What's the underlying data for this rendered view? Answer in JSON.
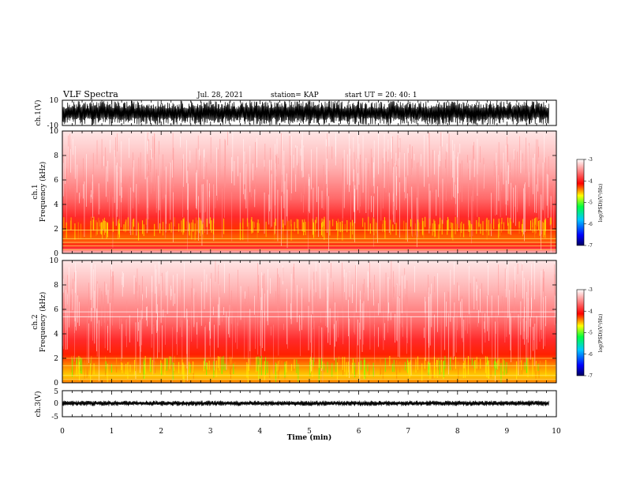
{
  "header": {
    "title": "VLF Spectra",
    "date": "Jul. 28, 2021",
    "station": "station= KAP",
    "start": "start  UT  =   20: 40: 1"
  },
  "chart_data": [
    {
      "type": "line",
      "name": "ch1-waveform",
      "ylabel": "ch.1(V)",
      "ylim": [
        -10,
        10
      ],
      "yticks": [
        "10",
        "-10"
      ],
      "xlim": [
        0,
        10
      ]
    },
    {
      "type": "heatmap",
      "name": "ch1-spectrogram",
      "ylabel_top": "ch.1",
      "ylabel": "Frequency  (kHz)",
      "ylim": [
        0,
        10
      ],
      "yticks": [
        "0",
        "2",
        "4",
        "6",
        "8",
        "10"
      ],
      "xlim": [
        0,
        10
      ],
      "colorbar": {
        "label": "log(PSD)(V²/Hz)",
        "range": [
          -7,
          -3
        ],
        "ticks": [
          "-3",
          "-4",
          "-5",
          "-6",
          "-7"
        ]
      }
    },
    {
      "type": "heatmap",
      "name": "ch2-spectrogram",
      "ylabel_top": "ch.2",
      "ylabel": "Frequency  (kHz)",
      "ylim": [
        0,
        10
      ],
      "yticks": [
        "0",
        "2",
        "4",
        "6",
        "8",
        "10"
      ],
      "xlim": [
        0,
        10
      ],
      "colorbar": {
        "label": "log(PSD)(V²/Hz)",
        "range": [
          -7,
          -3
        ],
        "ticks": [
          "-3",
          "-4",
          "-5",
          "-6",
          "-7"
        ]
      }
    },
    {
      "type": "line",
      "name": "ch3-waveform",
      "ylabel": "ch.3(V)",
      "ylim": [
        -5,
        5
      ],
      "yticks": [
        "5",
        "0",
        "-5"
      ],
      "xlim": [
        0,
        10
      ],
      "xlabel": "Time  (min)",
      "xticks": [
        "0",
        "1",
        "2",
        "3",
        "4",
        "5",
        "6",
        "7",
        "8",
        "9",
        "10"
      ]
    }
  ],
  "colors": {
    "axis": "#000000",
    "spectrogram_background": "#ff8080"
  }
}
